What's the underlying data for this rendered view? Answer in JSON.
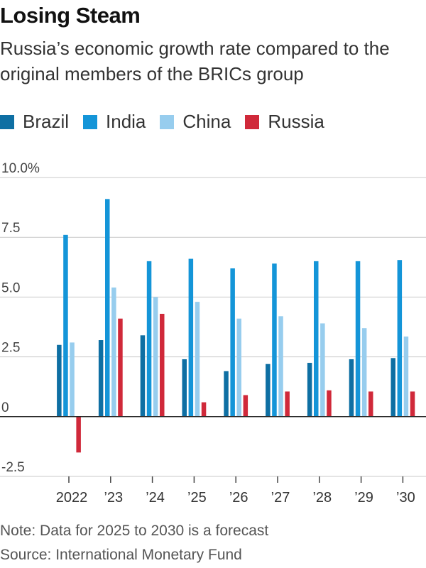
{
  "header": {
    "title": "Losing Steam",
    "subtitle": "Russia’s economic growth rate compared to the original members of the BRICs group"
  },
  "footer": {
    "note": "Note: Data for 2025 to 2030 is a forecast",
    "source": "Source: International Monetary Fund"
  },
  "colors": {
    "Brazil": "#0e6fa3",
    "India": "#1495d8",
    "China": "#97cdee",
    "Russia": "#d0293a"
  },
  "chart_data": {
    "type": "bar",
    "title": "Losing Steam",
    "subtitle": "Russia’s economic growth rate compared to the original members of the BRICs group",
    "xlabel": "",
    "ylabel": "",
    "categories": [
      "2022",
      "’23",
      "’24",
      "’25",
      "’26",
      "’27",
      "’28",
      "’29",
      "’30"
    ],
    "ylim": [
      -2.5,
      10.0
    ],
    "yticks": [
      -2.5,
      0,
      2.5,
      5.0,
      7.5,
      10.0
    ],
    "ytick_labels": [
      "-2.5",
      "0",
      "2.5",
      "5.0",
      "7.5",
      "10.0%"
    ],
    "grid": true,
    "legend": "top-left",
    "series": [
      {
        "name": "Brazil",
        "values": [
          3.0,
          3.2,
          3.4,
          2.4,
          1.9,
          2.2,
          2.25,
          2.4,
          2.45
        ]
      },
      {
        "name": "India",
        "values": [
          7.6,
          9.1,
          6.5,
          6.6,
          6.2,
          6.4,
          6.5,
          6.5,
          6.55
        ]
      },
      {
        "name": "China",
        "values": [
          3.1,
          5.4,
          5.0,
          4.8,
          4.1,
          4.2,
          3.9,
          3.7,
          3.35
        ]
      },
      {
        "name": "Russia",
        "values": [
          -1.5,
          4.1,
          4.3,
          0.6,
          0.9,
          1.05,
          1.1,
          1.05,
          1.05
        ]
      }
    ]
  }
}
